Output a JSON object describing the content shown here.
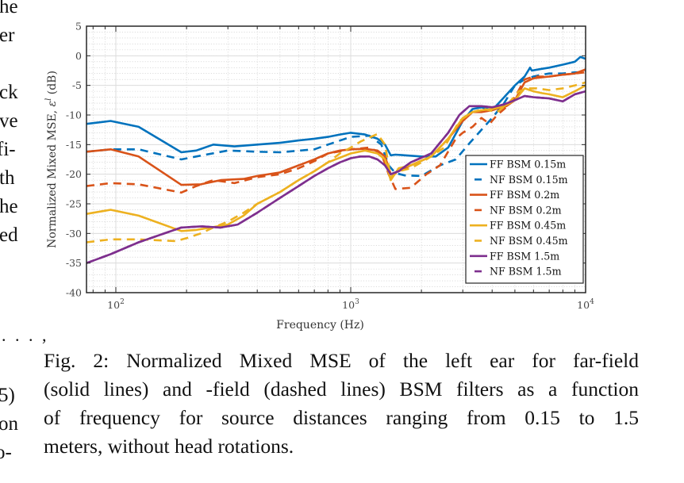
{
  "left_column_fragments": [
    {
      "text": "he",
      "line": 0
    },
    {
      "text": "er",
      "line": 1
    },
    {
      "text": "ck",
      "line": 3
    },
    {
      "text": "ve",
      "line": 4
    },
    {
      "text": "fi-",
      "line": 5
    },
    {
      "text": "th",
      "line": 6
    },
    {
      "text": "he",
      "line": 7
    },
    {
      "text": "ed",
      "line": 8
    }
  ],
  "left_column_lower": {
    "ellipsis": ". . . ,",
    "eq_number_fragment": "5)",
    "frag_on": "on",
    "frag_hyphen": "o-"
  },
  "caption": {
    "lines": [
      "Fig. 2: Normalized Mixed MSE of the left ear for far-field",
      "(solid lines) and -field (dashed lines) BSM filters as a function",
      "of frequency for source distances ranging from 0.15 to 1.5",
      "meters, without head rotations."
    ]
  },
  "chart_data": {
    "type": "line",
    "title": "",
    "xlabel": "Frequency (Hz)",
    "ylabel": "Normalized Mixed MSE, ε^l (dB)",
    "ylabel_main": "Normalized Mixed MSE, ",
    "ylabel_sym": "ε",
    "ylabel_sup": "l",
    "ylabel_unit": " (dB)",
    "xscale": "log",
    "xlim": [
      75,
      10000
    ],
    "ylim": [
      -40,
      5
    ],
    "grid": true,
    "minor_grid": true,
    "xticks": [
      {
        "value": 100,
        "base": "10",
        "exp": "2"
      },
      {
        "value": 1000,
        "base": "10",
        "exp": "3"
      },
      {
        "value": 10000,
        "base": "10",
        "exp": "4"
      }
    ],
    "yticks": [
      5,
      0,
      -5,
      -10,
      -15,
      -20,
      -25,
      -30,
      -35,
      -40
    ],
    "legend_position": "bottom-right",
    "series": [
      {
        "name": "FF BSM 0.15m",
        "color": "#0072BD",
        "dash": false,
        "x": [
          75,
          95,
          125,
          190,
          220,
          260,
          320,
          400,
          500,
          600,
          700,
          800,
          900,
          1000,
          1150,
          1300,
          1400,
          1480,
          1550,
          1700,
          2000,
          2300,
          2600,
          3000,
          3300,
          3600,
          4000,
          4500,
          5000,
          5500,
          5800,
          5900,
          6500,
          7000,
          8000,
          9000,
          9500,
          10000
        ],
        "y": [
          -11.5,
          -11,
          -12,
          -16.3,
          -16,
          -15,
          -15.3,
          -15,
          -14.7,
          -14.3,
          -14,
          -13.7,
          -13.3,
          -13,
          -13.3,
          -14,
          -15,
          -16.8,
          -16.7,
          -16.8,
          -17,
          -17,
          -15.5,
          -11,
          -9,
          -8.7,
          -9.2,
          -7,
          -5,
          -3.5,
          -2,
          -2.5,
          -2.2,
          -2,
          -1.5,
          -1,
          -0.2,
          -0.5
        ]
      },
      {
        "name": "NF BSM 0.15m",
        "color": "#0072BD",
        "dash": true,
        "x": [
          75,
          95,
          125,
          190,
          220,
          300,
          400,
          500,
          700,
          800,
          1000,
          1200,
          1350,
          1450,
          1550,
          1700,
          2000,
          2400,
          2800,
          3200,
          3600,
          4000,
          4500,
          5000,
          5500,
          6000,
          6500,
          7000,
          8000,
          9000,
          9500,
          10000
        ],
        "y": [
          -16.2,
          -15.8,
          -15.8,
          -17.5,
          -17,
          -16,
          -16.2,
          -16.3,
          -15.8,
          -15,
          -13.7,
          -13.5,
          -15,
          -18.5,
          -19.8,
          -20.2,
          -20.3,
          -18.5,
          -17.5,
          -14.8,
          -12.5,
          -10.5,
          -8,
          -5,
          -4,
          -3.5,
          -3.2,
          -3,
          -3,
          -2.8,
          -2.8,
          -2.5
        ]
      },
      {
        "name": "FF BSM 0.2m",
        "color": "#D95319",
        "dash": false,
        "x": [
          75,
          95,
          125,
          190,
          230,
          280,
          350,
          400,
          500,
          600,
          700,
          800,
          900,
          1000,
          1150,
          1300,
          1400,
          1480,
          1600,
          1800,
          2200,
          2600,
          3000,
          3300,
          3600,
          4000,
          4300,
          4600,
          5000,
          5500,
          6000,
          7000,
          8000,
          9000,
          10000
        ],
        "y": [
          -16.2,
          -15.8,
          -17,
          -21.8,
          -21.7,
          -21,
          -20.8,
          -20.3,
          -19.7,
          -18.5,
          -17.5,
          -16.5,
          -16,
          -15.8,
          -15.7,
          -16,
          -17,
          -20,
          -19.5,
          -18.5,
          -17,
          -14,
          -11,
          -9.5,
          -9.5,
          -9.2,
          -8.8,
          -8.5,
          -7.5,
          -4.5,
          -3.8,
          -3.5,
          -3.2,
          -3,
          -2.3
        ]
      },
      {
        "name": "NF BSM 0.2m",
        "color": "#D95319",
        "dash": true,
        "x": [
          75,
          95,
          125,
          190,
          220,
          260,
          320,
          400,
          500,
          600,
          700,
          800,
          1000,
          1200,
          1350,
          1450,
          1550,
          1800,
          2100,
          2400,
          2800,
          3000,
          3300,
          3600,
          3900,
          4200,
          4500,
          5000,
          5500,
          6000,
          7000,
          8000,
          9000,
          10000
        ],
        "y": [
          -22,
          -21.5,
          -21.7,
          -23.1,
          -22,
          -21,
          -21.5,
          -20.5,
          -20,
          -19,
          -17.8,
          -16.5,
          -15.8,
          -15.5,
          -16.5,
          -20,
          -22.5,
          -22.3,
          -20,
          -18.5,
          -14,
          -13,
          -12,
          -10.5,
          -11.5,
          -10,
          -9,
          -7,
          -4,
          -3.5,
          -3.5,
          -3.2,
          -3,
          -2.8
        ]
      },
      {
        "name": "FF BSM 0.45m",
        "color": "#EDB120",
        "dash": false,
        "x": [
          75,
          95,
          125,
          190,
          220,
          300,
          350,
          400,
          500,
          600,
          700,
          800,
          1000,
          1150,
          1300,
          1400,
          1480,
          1600,
          1800,
          2200,
          2600,
          3000,
          3300,
          3600,
          4000,
          4500,
          5000,
          5500,
          6000,
          6500,
          7000,
          8000,
          9000,
          10000
        ],
        "y": [
          -26.7,
          -26,
          -27,
          -29.6,
          -29.4,
          -28.5,
          -27,
          -25,
          -23,
          -21,
          -19.5,
          -18,
          -16.5,
          -16,
          -16.5,
          -17.5,
          -21,
          -19,
          -18.5,
          -17,
          -14,
          -10.5,
          -9.5,
          -9.2,
          -9,
          -8.5,
          -7.5,
          -5.5,
          -6,
          -6.3,
          -6.5,
          -7,
          -6,
          -5
        ]
      },
      {
        "name": "NF BSM 0.45m",
        "color": "#EDB120",
        "dash": true,
        "x": [
          75,
          95,
          125,
          180,
          200,
          230,
          260,
          300,
          350,
          400,
          500,
          600,
          700,
          800,
          900,
          1000,
          1100,
          1200,
          1300,
          1400,
          1480,
          1600,
          1800,
          2100,
          2500,
          2900,
          3300,
          3700,
          4200,
          4700,
          5200,
          5700,
          6200,
          7000,
          8000,
          9000,
          10000
        ],
        "y": [
          -31.5,
          -31,
          -31,
          -31.3,
          -30.8,
          -30,
          -29,
          -28,
          -26.5,
          -25,
          -23,
          -21,
          -19.5,
          -18,
          -16.5,
          -15.5,
          -14.5,
          -13.8,
          -13.2,
          -15,
          -20.5,
          -19.5,
          -19,
          -17.5,
          -15.5,
          -11,
          -9.5,
          -9,
          -9.5,
          -8,
          -6,
          -5.5,
          -5.5,
          -5.8,
          -5.5,
          -5,
          -4.5
        ]
      },
      {
        "name": "FF BSM 1.5m",
        "color": "#7E2F8E",
        "dash": false,
        "x": [
          75,
          95,
          125,
          190,
          230,
          280,
          330,
          400,
          500,
          600,
          700,
          800,
          900,
          1000,
          1100,
          1200,
          1300,
          1400,
          1480,
          1600,
          1800,
          2200,
          2600,
          2900,
          3200,
          3600,
          4000,
          4500,
          5000,
          5500,
          6000,
          7000,
          8000,
          9000,
          10000
        ],
        "y": [
          -35,
          -33.5,
          -31.5,
          -29,
          -28.8,
          -29,
          -28.5,
          -26.5,
          -24,
          -22,
          -20.3,
          -19,
          -18,
          -17.3,
          -17,
          -17,
          -17.5,
          -18.5,
          -20,
          -19.5,
          -18,
          -16.5,
          -13,
          -10,
          -8.5,
          -8.5,
          -8.7,
          -8.2,
          -7.5,
          -6.8,
          -7,
          -7.2,
          -7.7,
          -6.5,
          -6
        ]
      },
      {
        "name": "NF BSM 1.5m",
        "color": "#7E2F8E",
        "dash": true,
        "x": [
          75,
          95,
          125,
          190,
          230,
          280,
          330,
          400,
          500,
          600,
          700,
          800,
          900,
          1000,
          1100,
          1200,
          1300,
          1400,
          1480,
          1600,
          1800,
          2200,
          2600,
          2900,
          3200,
          3600,
          4000,
          4500,
          5000,
          5500,
          6000,
          7000,
          8000,
          9000,
          10000
        ],
        "y": [
          -35,
          -33.5,
          -31.5,
          -29,
          -28.8,
          -29,
          -28.5,
          -26.5,
          -24,
          -22,
          -20.3,
          -19,
          -18,
          -17.3,
          -17,
          -17,
          -17.5,
          -18.5,
          -20,
          -19.5,
          -18,
          -16.5,
          -13,
          -10,
          -8.5,
          -8.5,
          -8.7,
          -8.2,
          -7.5,
          -6.8,
          -7,
          -7.2,
          -7.7,
          -6.5,
          -6
        ]
      }
    ]
  }
}
